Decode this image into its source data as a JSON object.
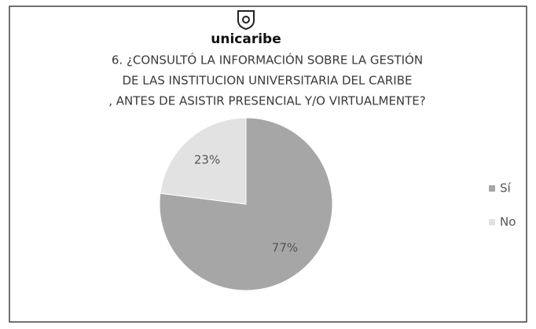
{
  "chart_data": {
    "type": "pie",
    "logo": "unicaribe",
    "title": [
      "6. ¿CONSULTÓ LA INFORMACIÓN SOBRE LA GESTIÓN",
      "DE LAS INSTITUCION UNIVERSITARIA DEL CARIBE",
      ", ANTES DE ASISTIR PRESENCIAL Y/O VIRTUALMENTE?"
    ],
    "categories": [
      "Sí",
      "No"
    ],
    "values": [
      77,
      23
    ],
    "value_labels": [
      "77%",
      "23%"
    ],
    "colors": [
      "#a6a6a6",
      "#e2e2e2"
    ],
    "legend": "right"
  }
}
